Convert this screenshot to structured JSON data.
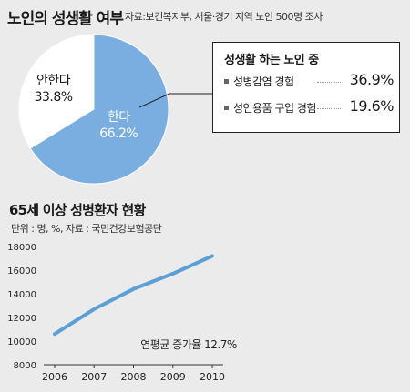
{
  "pie": {
    "title": "노인의 성생활 여부",
    "source": "자료:보건복지부, 서울·경기 지역 노인 500명 조사"
  },
  "callout": {
    "title": "성생활 하는 노인 중",
    "rows": [
      {
        "label": "성병감염 경험",
        "value": "36.9%"
      },
      {
        "label": "성인용품 구입 경험",
        "value": "19.6%"
      }
    ]
  },
  "line": {
    "title": "65세 이상 성병환자 현황",
    "units": "단위 : 명, %, 자료 : 국민건강보험공단",
    "annotation": "연평균 증가율 12.7%"
  },
  "colors": {
    "pie_yes": "#7aaee0",
    "pie_no": "#ffffff",
    "line": "#5b9fd6"
  },
  "chart_data": [
    {
      "type": "pie",
      "title": "노인의 성생활 여부",
      "categories": [
        "한다",
        "안한다"
      ],
      "values": [
        66.2,
        33.8
      ],
      "labels": [
        "66.2%",
        "33.8%"
      ]
    },
    {
      "type": "line",
      "title": "65세 이상 성병환자 현황",
      "x": [
        "2006",
        "2007",
        "2008",
        "2009",
        "2010"
      ],
      "series": [
        {
          "values": [
            10600,
            12700,
            14400,
            15700,
            17200
          ]
        }
      ],
      "ylim": [
        8000,
        18000
      ],
      "yticks": [
        8000,
        10000,
        12000,
        14000,
        16000,
        18000
      ],
      "grid": false,
      "annotation": "연평균 증가율 12.7%"
    }
  ]
}
